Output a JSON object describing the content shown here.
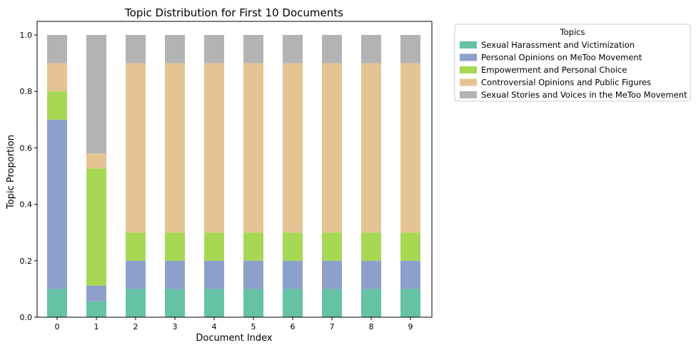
{
  "chart_data": {
    "type": "bar",
    "stacked": true,
    "title": "Topic Distribution for First 10 Documents",
    "xlabel": "Document Index",
    "ylabel": "Topic Proportion",
    "categories": [
      "0",
      "1",
      "2",
      "3",
      "4",
      "5",
      "6",
      "7",
      "8",
      "9"
    ],
    "ylim": [
      0,
      1.0
    ],
    "yticks": [
      "0.0",
      "0.2",
      "0.4",
      "0.6",
      "0.8",
      "1.0"
    ],
    "grid": false,
    "legend": {
      "title": "Topics",
      "placement": "outside-top-right"
    },
    "series": [
      {
        "name": "Sexual Harassment and Victimization",
        "color": "#66c2a5",
        "values": [
          0.1,
          0.056,
          0.1,
          0.1,
          0.1,
          0.1,
          0.1,
          0.1,
          0.1,
          0.1
        ]
      },
      {
        "name": "Personal Opinions on MeToo Movement",
        "color": "#8da0cb",
        "values": [
          0.6,
          0.056,
          0.1,
          0.1,
          0.1,
          0.1,
          0.1,
          0.1,
          0.1,
          0.1
        ]
      },
      {
        "name": "Empowerment and Personal Choice",
        "color": "#a6d854",
        "values": [
          0.1,
          0.415,
          0.1,
          0.1,
          0.1,
          0.1,
          0.1,
          0.1,
          0.1,
          0.1
        ]
      },
      {
        "name": "Controversial Opinions and Public Figures",
        "color": "#e5c494",
        "values": [
          0.1,
          0.053,
          0.6,
          0.6,
          0.6,
          0.6,
          0.6,
          0.6,
          0.6,
          0.6
        ]
      },
      {
        "name": "Sexual Stories and Voices in the MeToo Movement",
        "color": "#b3b3b3",
        "values": [
          0.1,
          0.42,
          0.1,
          0.1,
          0.1,
          0.1,
          0.1,
          0.1,
          0.1,
          0.1
        ]
      }
    ]
  }
}
